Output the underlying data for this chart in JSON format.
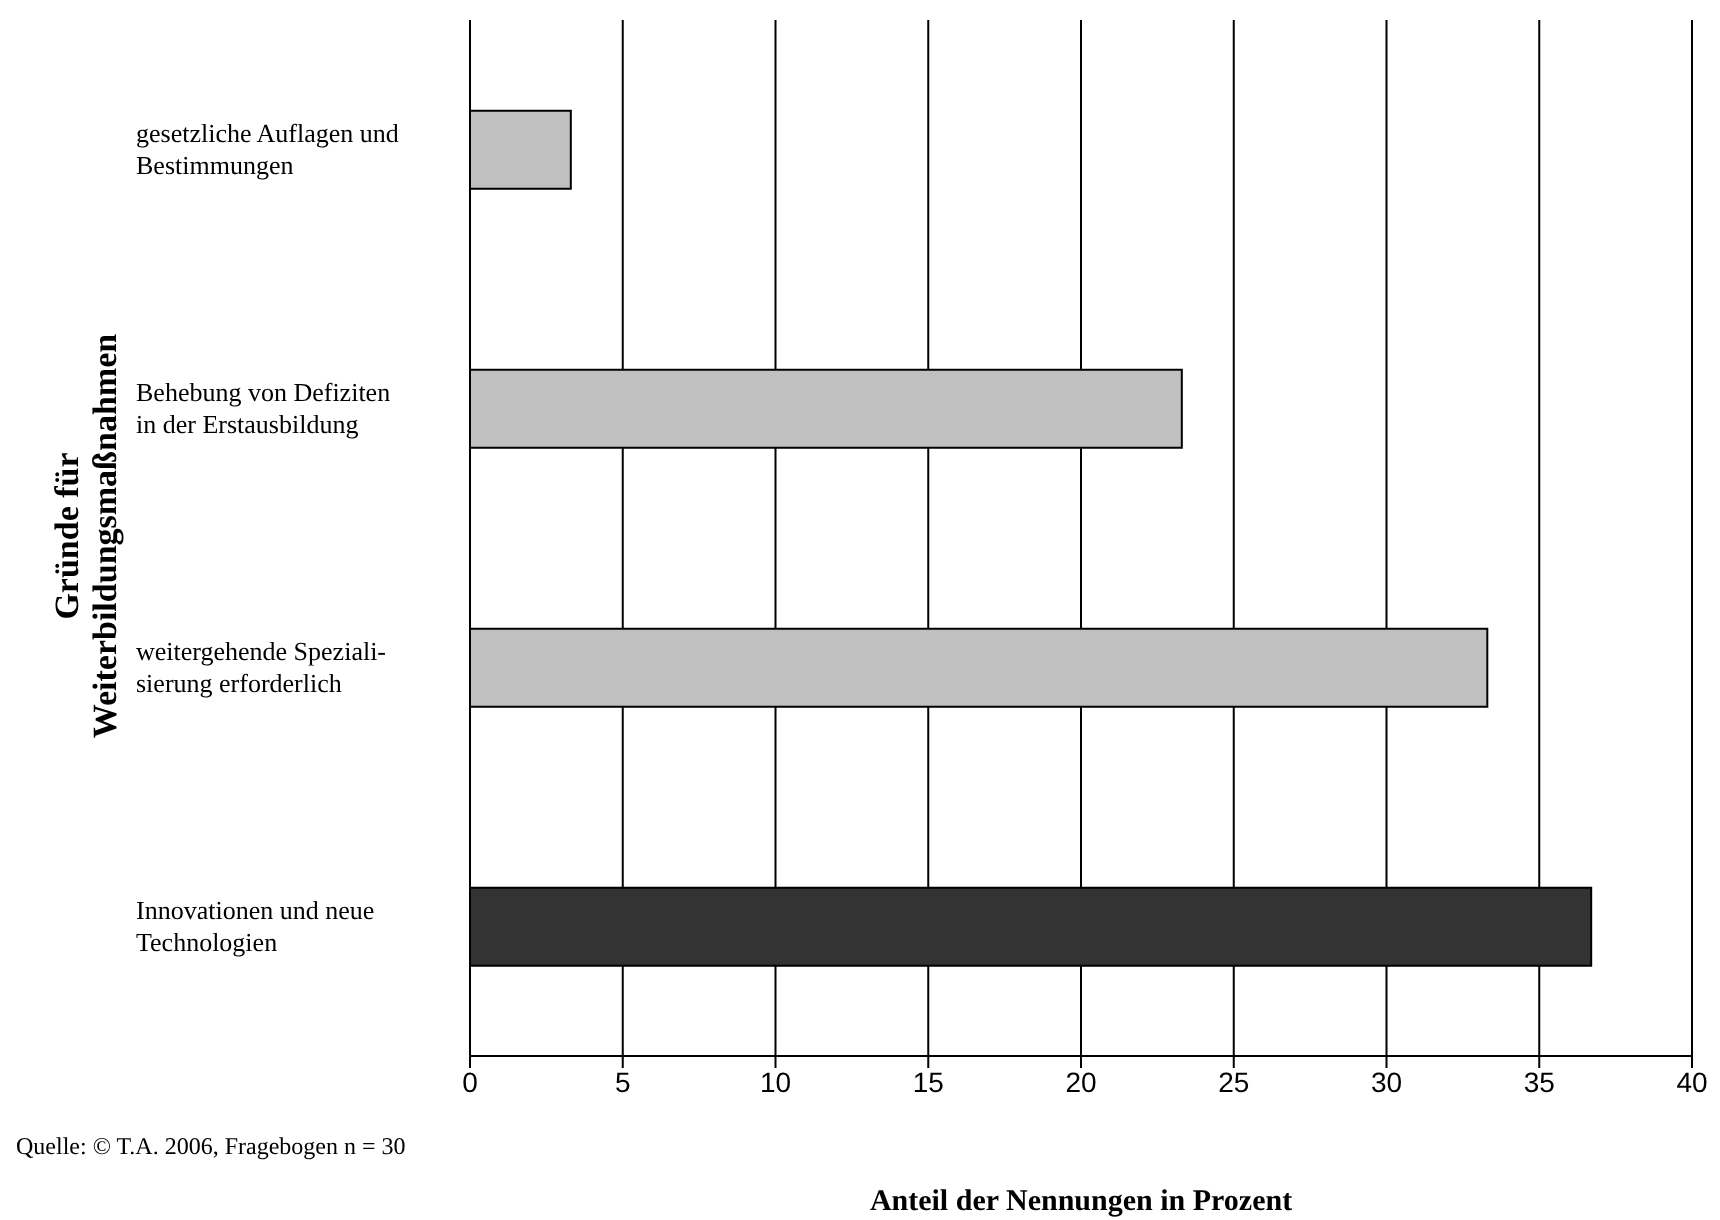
{
  "chart_data": {
    "type": "bar",
    "orientation": "horizontal",
    "ylabel": "Gründe für\nWeiterbildungsmaßnahmen",
    "xlabel": "Anteil der Nennungen in Prozent",
    "categories": [
      "gesetzliche Auflagen und\nBestimmungen",
      "Behebung von Defiziten\nin der Erstausbildung",
      "weitergehende Speziali-\nsierung erforderlich",
      "Innovationen und neue\nTechnologien"
    ],
    "values": [
      3.3,
      23.3,
      33.3,
      36.7
    ],
    "colors": [
      "#c0c0c0",
      "#c0c0c0",
      "#c0c0c0",
      "#333333"
    ],
    "xlim": [
      0,
      40
    ],
    "xticks": [
      0,
      5,
      10,
      15,
      20,
      25,
      30,
      35,
      40
    ],
    "grid": "x",
    "annotations": [
      "Quelle: © T.A. 2006, Fragebogen n = 30"
    ]
  }
}
